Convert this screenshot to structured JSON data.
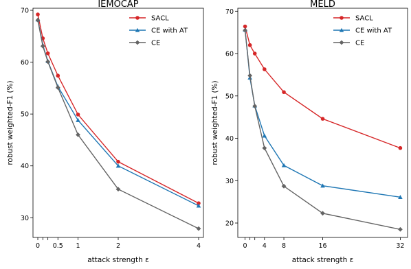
{
  "chart_data": [
    {
      "type": "line",
      "title": "IEMOCAP",
      "xlabel": "attack strength ε",
      "ylabel": "robust weighted-F1 (%)",
      "xlim": [
        -0.12,
        4.12
      ],
      "ylim": [
        26.2,
        70.4
      ],
      "xticks": [
        0,
        0.125,
        0.25,
        0.5,
        1,
        2,
        4
      ],
      "xticklabels": [
        "0",
        "",
        "",
        "0.5",
        "1",
        "2",
        "4"
      ],
      "yticks": [
        30,
        40,
        50,
        60,
        70
      ],
      "yticklabels": [
        "30",
        "40",
        "50",
        "60",
        "70"
      ],
      "grid": false,
      "legend_position": "top-right",
      "series": [
        {
          "name": "SACL",
          "color": "#d62728",
          "marker": "circle",
          "x": [
            0,
            0.125,
            0.25,
            0.5,
            1,
            2,
            4
          ],
          "y": [
            69.2,
            64.6,
            61.7,
            57.4,
            49.9,
            40.8,
            32.8
          ]
        },
        {
          "name": "CE with AT",
          "color": "#1f77b4",
          "marker": "triangle",
          "x": [
            0,
            0.125,
            0.25,
            0.5,
            1,
            2,
            4
          ],
          "y": [
            68.2,
            63.3,
            60.2,
            55.3,
            48.8,
            40.0,
            32.3
          ]
        },
        {
          "name": "CE",
          "color": "#646464",
          "marker": "diamond",
          "x": [
            0,
            0.125,
            0.25,
            0.5,
            1,
            2,
            4
          ],
          "y": [
            68.1,
            63.1,
            60.1,
            55.1,
            46.0,
            35.5,
            27.9
          ]
        }
      ]
    },
    {
      "type": "line",
      "title": "MELD",
      "xlabel": "attack strength ε",
      "ylabel": "robust weighted-F1 (%)",
      "xlim": [
        -1.5,
        33.5
      ],
      "ylim": [
        16.6,
        70.7
      ],
      "xticks": [
        0,
        1,
        2,
        4,
        8,
        16,
        32
      ],
      "xticklabels": [
        "0",
        "",
        "",
        "4",
        "8",
        "16",
        "32"
      ],
      "yticks": [
        20,
        30,
        40,
        50,
        60,
        70
      ],
      "yticklabels": [
        "20",
        "30",
        "40",
        "50",
        "60",
        "70"
      ],
      "grid": false,
      "legend_position": "top-right",
      "series": [
        {
          "name": "SACL",
          "color": "#d62728",
          "marker": "circle",
          "x": [
            0,
            1,
            2,
            4,
            8,
            16,
            32
          ],
          "y": [
            66.4,
            62.0,
            60.0,
            56.3,
            50.9,
            44.6,
            37.7
          ]
        },
        {
          "name": "CE with AT",
          "color": "#1f77b4",
          "marker": "triangle",
          "x": [
            0,
            1,
            2,
            4,
            8,
            16,
            32
          ],
          "y": [
            65.6,
            54.3,
            47.7,
            40.6,
            33.6,
            28.8,
            26.1
          ]
        },
        {
          "name": "CE",
          "color": "#646464",
          "marker": "diamond",
          "x": [
            0,
            1,
            2,
            4,
            8,
            16,
            32
          ],
          "y": [
            65.5,
            54.8,
            47.6,
            37.7,
            28.7,
            22.3,
            18.5
          ]
        }
      ]
    }
  ]
}
